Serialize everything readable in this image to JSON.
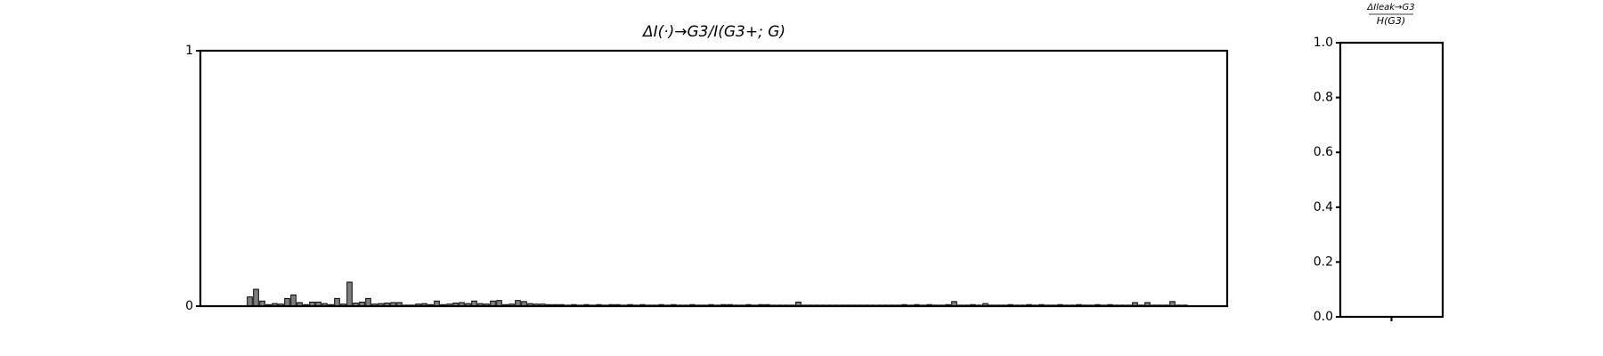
{
  "chart_data": [
    {
      "type": "bar",
      "title": "ΔI(·)→G3/I(G3+; G)",
      "color": "#7f7f7f",
      "edgecolor": "#000000",
      "categories": [
        null,
        null,
        null,
        null,
        null,
        null,
        null,
        null,
        null,
        null,
        null,
        null,
        null,
        null,
        null,
        null,
        null,
        null,
        null,
        null,
        null,
        null,
        null,
        null,
        null,
        null,
        null,
        null,
        null,
        null,
        null,
        null,
        null,
        null,
        null,
        null,
        null,
        null,
        null,
        null,
        null,
        null,
        null,
        null,
        null,
        null,
        null,
        null,
        null,
        null,
        null,
        null,
        null,
        null,
        null,
        null,
        null,
        null,
        null,
        null,
        null,
        null,
        null,
        null,
        null,
        null,
        null,
        null,
        null,
        null,
        null,
        null,
        null,
        null,
        null,
        null,
        null,
        null,
        null,
        null,
        null,
        null,
        null,
        null,
        null,
        null,
        null,
        null,
        null,
        null,
        null,
        null,
        null,
        null,
        null,
        null,
        null,
        null,
        null,
        null,
        null,
        null,
        null,
        null,
        null,
        null,
        null,
        null,
        null,
        null,
        null,
        null,
        null,
        null,
        null,
        null,
        null,
        null,
        null,
        null,
        null,
        null,
        null,
        null,
        null,
        null,
        null,
        null,
        null,
        null,
        null,
        null,
        null,
        null,
        null,
        null,
        null,
        null,
        null,
        null,
        null,
        null,
        null,
        null,
        null,
        null,
        null,
        null,
        null,
        null,
        null,
        null,
        null,
        null,
        null,
        null,
        null,
        null,
        null,
        null
      ],
      "values": [
        0,
        0,
        0,
        0,
        0,
        0,
        0.036,
        0.066,
        0.02,
        0.006,
        0.01,
        0.008,
        0.03,
        0.044,
        0.014,
        0.006,
        0.016,
        0.016,
        0.01,
        0.006,
        0.03,
        0.008,
        0.094,
        0.012,
        0.016,
        0.03,
        0.008,
        0.01,
        0.012,
        0.014,
        0.014,
        0.004,
        0.004,
        0.008,
        0.01,
        0.006,
        0.02,
        0.006,
        0.008,
        0.012,
        0.014,
        0.01,
        0.02,
        0.01,
        0.008,
        0.02,
        0.022,
        0.006,
        0.008,
        0.022,
        0.018,
        0.01,
        0.008,
        0.008,
        0.006,
        0.006,
        0.006,
        0.004,
        0.006,
        0.004,
        0.006,
        0.004,
        0.006,
        0.004,
        0.006,
        0.006,
        0.004,
        0.006,
        0.004,
        0.006,
        0.004,
        0.004,
        0.006,
        0.004,
        0.006,
        0.004,
        0.004,
        0.006,
        0.004,
        0.004,
        0.006,
        0.004,
        0.006,
        0.006,
        0.004,
        0.004,
        0.006,
        0.004,
        0.006,
        0.006,
        0.004,
        0.004,
        0.004,
        0.004,
        0.016,
        0.004,
        0.004,
        0.004,
        0.004,
        0.004,
        0.004,
        0.004,
        0.004,
        0.004,
        0.004,
        0.004,
        0.004,
        0.004,
        0.004,
        0.004,
        0.004,
        0.006,
        0.004,
        0.006,
        0.004,
        0.006,
        0.004,
        0.004,
        0.006,
        0.018,
        0.004,
        0.004,
        0.006,
        0.004,
        0.01,
        0.004,
        0.004,
        0.004,
        0.006,
        0.004,
        0.004,
        0.006,
        0.004,
        0.006,
        0.004,
        0.004,
        0.006,
        0.004,
        0.004,
        0.006,
        0.004,
        0.004,
        0.006,
        0.004,
        0.006,
        0.004,
        0.004,
        0.004,
        0.014,
        0.004,
        0.014,
        0.004,
        0.004,
        0.004,
        0.018,
        0.004,
        0.004,
        0,
        0,
        0
      ],
      "ylim": [
        0,
        1
      ],
      "yticks": [
        0,
        1
      ]
    },
    {
      "type": "bar",
      "title": {
        "numerator": "ΔIleak→G3",
        "denominator": "H(G3)"
      },
      "color": "#7f7f7f",
      "edgecolor": "#000000",
      "categories": [
        null
      ],
      "values": [
        0
      ],
      "ylim": [
        0,
        1
      ],
      "yticks": [
        {
          "value": 0,
          "label": "0.0"
        },
        0.2,
        0.4,
        0.6,
        0.8,
        {
          "value": 1,
          "label": "1.0"
        }
      ]
    }
  ]
}
